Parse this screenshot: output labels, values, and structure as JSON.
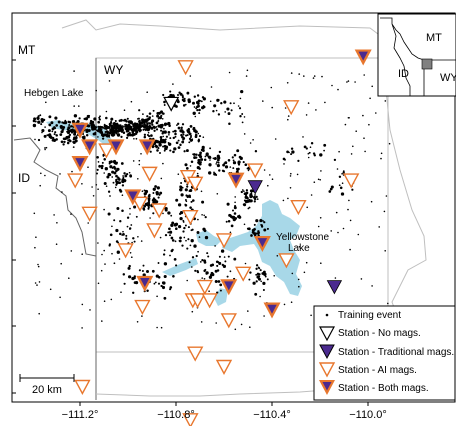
{
  "map": {
    "region_labels": {
      "mt": "MT",
      "wy": "WY",
      "id": "ID"
    },
    "lake_labels": {
      "hebgen": "Hebgen Lake",
      "yellowstone_line1": "Yellowstone",
      "yellowstone_line2": "Lake"
    },
    "scale_bar_label": "20 km",
    "inset": {
      "mt": "MT",
      "id": "ID",
      "wy": "WY"
    },
    "x_ticks": [
      "−111.2°",
      "−110.8°",
      "−110.4°",
      "−110.0°"
    ],
    "legend": {
      "training_event": "Training event",
      "no_mags": "Station - No mags.",
      "traditional": "Station - Traditional mags.",
      "ai": "Station - AI mags.",
      "both": "Station - Both mags."
    },
    "colors": {
      "lake": "#a8d8e8",
      "ai_station": "#e8772e",
      "traditional_station": "#4b2a8f",
      "boundary": "#bfbfbf"
    },
    "stations": {
      "no_mags": [
        [
          -110.82,
          44.92
        ]
      ],
      "traditional": [
        [
          -110.14,
          44.37
        ],
        [
          -110.47,
          44.67
        ]
      ],
      "ai": [
        [
          -110.76,
          45.03
        ],
        [
          -110.32,
          44.91
        ],
        [
          -110.47,
          44.72
        ],
        [
          -110.07,
          44.69
        ],
        [
          -111.22,
          44.69
        ],
        [
          -111.09,
          44.78
        ],
        [
          -111.16,
          44.59
        ],
        [
          -110.91,
          44.71
        ],
        [
          -110.75,
          44.7
        ],
        [
          -110.72,
          44.68
        ],
        [
          -110.29,
          44.61
        ],
        [
          -110.87,
          44.6
        ],
        [
          -110.95,
          44.62
        ],
        [
          -110.89,
          44.54
        ],
        [
          -111.01,
          44.48
        ],
        [
          -110.74,
          44.58
        ],
        [
          -110.6,
          44.51
        ],
        [
          -110.34,
          44.45
        ],
        [
          -110.52,
          44.41
        ],
        [
          -110.68,
          44.37
        ],
        [
          -110.73,
          44.33
        ],
        [
          -110.71,
          44.33
        ],
        [
          -110.66,
          44.33
        ],
        [
          -110.94,
          44.31
        ],
        [
          -110.58,
          44.27
        ],
        [
          -110.72,
          44.17
        ],
        [
          -110.6,
          44.13
        ],
        [
          -111.19,
          44.07
        ],
        [
          -110.74,
          43.97
        ]
      ],
      "both": [
        [
          -110.02,
          45.06
        ],
        [
          -111.2,
          44.84
        ],
        [
          -111.05,
          44.79
        ],
        [
          -110.92,
          44.79
        ],
        [
          -111.2,
          44.74
        ],
        [
          -111.16,
          44.79
        ],
        [
          -110.55,
          44.69
        ],
        [
          -110.98,
          44.64
        ],
        [
          -110.44,
          44.5
        ],
        [
          -110.93,
          44.38
        ],
        [
          -110.58,
          44.37
        ],
        [
          -110.4,
          44.3
        ]
      ]
    }
  }
}
